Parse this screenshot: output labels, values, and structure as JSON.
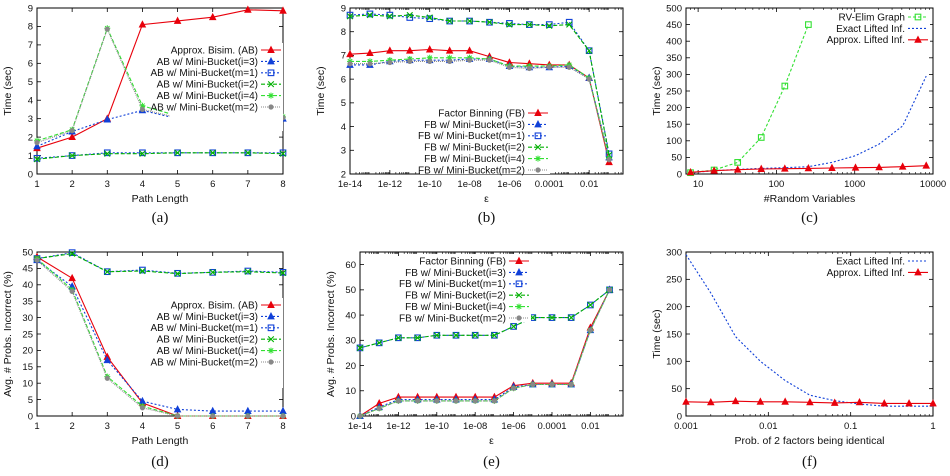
{
  "chart_data": [
    {
      "id": "a",
      "type": "line",
      "panel_label": "(a)",
      "xlabel": "Path Length",
      "ylabel": "Time (sec)",
      "xscale": "linear",
      "xlim": [
        1,
        8
      ],
      "ylim": [
        0,
        9
      ],
      "xticks": [
        1,
        2,
        3,
        4,
        5,
        6,
        7,
        8
      ],
      "xtick_labels": [
        "1",
        "2",
        "3",
        "4",
        "5",
        "6",
        "7",
        "8"
      ],
      "yticks": [
        0,
        1,
        2,
        3,
        4,
        5,
        6,
        7,
        8,
        9
      ],
      "ytick_labels": [
        "0",
        "1",
        "2",
        "3",
        "4",
        "5",
        "6",
        "7",
        "8",
        "9"
      ],
      "legend_position": "top-right",
      "x": [
        1,
        2,
        3,
        4,
        5,
        6,
        7,
        8
      ],
      "series": [
        {
          "name": "Approx. Bisim. (AB)",
          "style": "ab",
          "values": [
            1.4,
            2.0,
            3.0,
            8.1,
            8.3,
            8.5,
            8.9,
            8.85
          ]
        },
        {
          "name": "AB w/ Mini-Bucket(i=3)",
          "style": "i3",
          "values": [
            1.5,
            2.3,
            2.95,
            3.45,
            3.0,
            2.95,
            3.0,
            3.0
          ]
        },
        {
          "name": "AB w/ Mini-Bucket(m=1)",
          "style": "m1",
          "values": [
            0.85,
            1.0,
            1.15,
            1.15,
            1.15,
            1.15,
            1.15,
            1.15
          ]
        },
        {
          "name": "AB w/ Mini-Bucket(i=2)",
          "style": "i2",
          "values": [
            0.8,
            1.0,
            1.1,
            1.1,
            1.15,
            1.15,
            1.15,
            1.1
          ]
        },
        {
          "name": "AB w/ Mini-Bucket(i=4)",
          "style": "i4",
          "values": [
            1.8,
            2.4,
            7.9,
            3.7,
            3.15,
            3.05,
            3.1,
            3.1
          ]
        },
        {
          "name": "AB w/ Mini-Bucket(m=2)",
          "style": "m2",
          "values": [
            1.7,
            2.35,
            7.85,
            3.5,
            3.05,
            3.0,
            3.05,
            3.05
          ]
        }
      ]
    },
    {
      "id": "b",
      "type": "line",
      "panel_label": "(b)",
      "xlabel": "ε",
      "ylabel": "Time (sec)",
      "xscale": "log",
      "xlim": [
        1e-14,
        0.5
      ],
      "ylim": [
        2,
        9
      ],
      "xticks": [
        1e-14,
        1e-12,
        1e-10,
        1e-08,
        1e-06,
        0.0001,
        0.01
      ],
      "xtick_labels": [
        "1e-14",
        "1e-12",
        "1e-10",
        "1e-08",
        "1e-06",
        "0.0001",
        "0.01"
      ],
      "yticks": [
        2,
        3,
        4,
        5,
        6,
        7,
        8,
        9
      ],
      "ytick_labels": [
        "2",
        "3",
        "4",
        "5",
        "6",
        "7",
        "8",
        "9"
      ],
      "legend_position": "bottom-center",
      "x": [
        1e-14,
        1e-13,
        1e-12,
        1e-11,
        1e-10,
        1e-09,
        1e-08,
        1e-07,
        1e-06,
        1e-05,
        0.0001,
        0.001,
        0.01,
        0.1
      ],
      "series": [
        {
          "name": "Factor Binning (FB)",
          "style": "ab",
          "values": [
            7.05,
            7.1,
            7.2,
            7.2,
            7.25,
            7.2,
            7.2,
            6.95,
            6.7,
            6.65,
            6.6,
            6.6,
            6.05,
            2.5
          ]
        },
        {
          "name": "FB w/ Mini-Bucket(i=3)",
          "style": "i3",
          "values": [
            6.6,
            6.6,
            6.75,
            6.8,
            6.8,
            6.8,
            6.85,
            6.85,
            6.55,
            6.5,
            6.5,
            6.55,
            6.05,
            2.7
          ]
        },
        {
          "name": "FB w/ Mini-Bucket(m=1)",
          "style": "m1",
          "values": [
            8.7,
            8.75,
            8.7,
            8.6,
            8.55,
            8.45,
            8.45,
            8.4,
            8.35,
            8.3,
            8.3,
            8.4,
            7.2,
            2.85
          ]
        },
        {
          "name": "FB w/ Mini-Bucket(i=2)",
          "style": "i2",
          "values": [
            8.65,
            8.7,
            8.65,
            8.7,
            8.6,
            8.45,
            8.45,
            8.4,
            8.3,
            8.3,
            8.25,
            8.3,
            7.2,
            2.8
          ]
        },
        {
          "name": "FB w/ Mini-Bucket(i=4)",
          "style": "i4",
          "values": [
            6.75,
            6.75,
            6.8,
            6.85,
            6.9,
            6.9,
            6.9,
            6.85,
            6.55,
            6.55,
            6.55,
            6.6,
            6.05,
            2.65
          ]
        },
        {
          "name": "FB w/ Mini-Bucket(m=2)",
          "style": "m2",
          "values": [
            6.65,
            6.65,
            6.7,
            6.75,
            6.75,
            6.75,
            6.8,
            6.8,
            6.5,
            6.45,
            6.5,
            6.5,
            6.0,
            2.6
          ]
        }
      ]
    },
    {
      "id": "c",
      "type": "line",
      "panel_label": "(c)",
      "xlabel": "#Random Variables",
      "ylabel": "Time (sec)",
      "xscale": "log",
      "xlim": [
        7,
        10000
      ],
      "ylim": [
        0,
        500
      ],
      "xticks": [
        10,
        100,
        1000,
        10000
      ],
      "xtick_labels": [
        "10",
        "100",
        "1000",
        "10000"
      ],
      "yticks": [
        0,
        50,
        100,
        150,
        200,
        250,
        300,
        350,
        400,
        450,
        500
      ],
      "ytick_labels": [
        "0",
        "50",
        "100",
        "150",
        "200",
        "250",
        "300",
        "350",
        "400",
        "450",
        "500"
      ],
      "legend_position": "top-right",
      "series": [
        {
          "name": "RV-Elim Graph",
          "style": "rv",
          "x": [
            8,
            16,
            32,
            64,
            128,
            256
          ],
          "values": [
            4,
            12,
            35,
            110,
            265,
            450
          ]
        },
        {
          "name": "Exact Lifted Inf.",
          "style": "exact",
          "x": [
            8,
            16,
            32,
            64,
            128,
            256,
            512,
            1024,
            2048,
            4096,
            8192
          ],
          "values": [
            4,
            10,
            14,
            17,
            19,
            22,
            35,
            55,
            90,
            145,
            295
          ]
        },
        {
          "name": "Approx. Lifted Inf.",
          "style": "ab",
          "x": [
            8,
            16,
            32,
            64,
            128,
            256,
            512,
            1024,
            2048,
            4096,
            8192
          ],
          "values": [
            5,
            10,
            13,
            15,
            16,
            17,
            18,
            19,
            20,
            22,
            25
          ]
        }
      ]
    },
    {
      "id": "d",
      "type": "line",
      "panel_label": "(d)",
      "xlabel": "Path Length",
      "ylabel": "Avg. # Probs. Incorrect (%)",
      "xscale": "linear",
      "xlim": [
        1,
        8
      ],
      "ylim": [
        0,
        50
      ],
      "xticks": [
        1,
        2,
        3,
        4,
        5,
        6,
        7,
        8
      ],
      "xtick_labels": [
        "1",
        "2",
        "3",
        "4",
        "5",
        "6",
        "7",
        "8"
      ],
      "yticks": [
        0,
        5,
        10,
        15,
        20,
        25,
        30,
        35,
        40,
        45,
        50
      ],
      "ytick_labels": [
        "0",
        "5",
        "10",
        "15",
        "20",
        "25",
        "30",
        "35",
        "40",
        "45",
        "50"
      ],
      "legend_position": "center-right",
      "x": [
        1,
        2,
        3,
        4,
        5,
        6,
        7,
        8
      ],
      "series": [
        {
          "name": "Approx. Bisim. (AB)",
          "style": "ab",
          "values": [
            48.5,
            42,
            18,
            4,
            0,
            0,
            0,
            0
          ]
        },
        {
          "name": "AB w/ Mini-Bucket(i=3)",
          "style": "i3",
          "values": [
            47.5,
            39.5,
            17,
            4.5,
            2,
            1.5,
            1.5,
            1.5
          ]
        },
        {
          "name": "AB w/ Mini-Bucket(m=1)",
          "style": "m1",
          "values": [
            48,
            49.8,
            44,
            44.5,
            43.5,
            43.8,
            44.2,
            43.8
          ]
        },
        {
          "name": "AB w/ Mini-Bucket(i=2)",
          "style": "i2",
          "values": [
            48,
            49.5,
            44,
            44.2,
            43.4,
            43.8,
            44,
            43.6
          ]
        },
        {
          "name": "AB w/ Mini-Bucket(i=4)",
          "style": "i4",
          "values": [
            48,
            38.5,
            12,
            3,
            0,
            0,
            0,
            0
          ]
        },
        {
          "name": "AB w/ Mini-Bucket(m=2)",
          "style": "m2",
          "values": [
            47.5,
            38,
            11.5,
            2.5,
            0,
            0,
            0,
            0
          ]
        }
      ]
    },
    {
      "id": "e",
      "type": "line",
      "panel_label": "(e)",
      "xlabel": "ε",
      "ylabel": "Avg. # Probs. Incorrect (%)",
      "xscale": "log",
      "xlim": [
        1e-14,
        0.5
      ],
      "ylim": [
        0,
        65
      ],
      "xticks": [
        1e-14,
        1e-12,
        1e-10,
        1e-08,
        1e-06,
        0.0001,
        0.01
      ],
      "xtick_labels": [
        "1e-14",
        "1e-12",
        "1e-10",
        "1e-08",
        "1e-06",
        "0.0001",
        "0.01"
      ],
      "yticks": [
        0,
        10,
        20,
        30,
        40,
        50,
        60
      ],
      "ytick_labels": [
        "0",
        "10",
        "20",
        "30",
        "40",
        "50",
        "60"
      ],
      "legend_position": "top-left",
      "x": [
        1e-14,
        1e-13,
        1e-12,
        1e-11,
        1e-10,
        1e-09,
        1e-08,
        1e-07,
        1e-06,
        1e-05,
        0.0001,
        0.001,
        0.01,
        0.1
      ],
      "series": [
        {
          "name": "Factor Binning (FB)",
          "style": "ab",
          "values": [
            0,
            5,
            7.5,
            7.5,
            7.5,
            7.5,
            7.5,
            7.5,
            12,
            13,
            13,
            13,
            35,
            50
          ]
        },
        {
          "name": "FB w/ Mini-Bucket(i=3)",
          "style": "i3",
          "values": [
            0,
            3.5,
            6.5,
            6.5,
            6.5,
            6.5,
            6.5,
            6.5,
            11.5,
            12.5,
            12.5,
            12.5,
            34,
            50
          ]
        },
        {
          "name": "FB w/ Mini-Bucket(m=1)",
          "style": "m1",
          "values": [
            27,
            29,
            31,
            31,
            32,
            32,
            32,
            32,
            35.5,
            39,
            39,
            39,
            44,
            50
          ]
        },
        {
          "name": "FB w/ Mini-Bucket(i=2)",
          "style": "i2",
          "values": [
            27,
            29,
            31,
            31,
            32,
            32,
            32,
            32,
            35.5,
            39,
            39,
            39,
            44,
            50
          ]
        },
        {
          "name": "FB w/ Mini-Bucket(i=4)",
          "style": "i4",
          "values": [
            0,
            3,
            6,
            6,
            6,
            6,
            6,
            6,
            11,
            12.5,
            12.5,
            12.5,
            34,
            50
          ]
        },
        {
          "name": "FB w/ Mini-Bucket(m=2)",
          "style": "m2",
          "values": [
            0,
            3,
            6,
            6,
            6,
            6,
            6,
            6,
            11,
            12.5,
            12.5,
            12.5,
            34,
            50
          ]
        }
      ]
    },
    {
      "id": "f",
      "type": "line",
      "panel_label": "(f)",
      "xlabel": "Prob. of 2 factors being identical",
      "ylabel": "Time (sec)",
      "xscale": "log",
      "xlim": [
        0.001,
        1
      ],
      "ylim": [
        0,
        300
      ],
      "xticks": [
        0.001,
        0.01,
        0.1,
        1
      ],
      "xtick_labels": [
        "0.001",
        "0.01",
        "0.1",
        "1"
      ],
      "yticks": [
        0,
        50,
        100,
        150,
        200,
        250,
        300
      ],
      "ytick_labels": [
        "0",
        "50",
        "100",
        "150",
        "200",
        "250",
        "300"
      ],
      "legend_position": "top-right",
      "x": [
        0.001,
        0.002,
        0.004,
        0.008,
        0.016,
        0.032,
        0.064,
        0.128,
        0.256,
        0.512,
        1.0
      ],
      "series": [
        {
          "name": "Exact Lifted Inf.",
          "style": "exact",
          "values": [
            295,
            225,
            145,
            100,
            65,
            38,
            28,
            22,
            18,
            18,
            18
          ]
        },
        {
          "name": "Approx. Lifted Inf.",
          "style": "ab",
          "values": [
            26,
            25,
            27,
            26,
            26,
            25,
            24,
            25,
            23,
            23,
            23
          ]
        }
      ]
    }
  ],
  "styles": {
    "ab": {
      "color": "#e8000b",
      "marker": "triangle",
      "dash": ""
    },
    "i3": {
      "color": "#1040d8",
      "marker": "triangle",
      "dash": "2,2"
    },
    "m1": {
      "color": "#1040d8",
      "marker": "square",
      "dash": "2,2"
    },
    "i2": {
      "color": "#00b000",
      "marker": "x",
      "dash": "4,2"
    },
    "i4": {
      "color": "#33e033",
      "marker": "cross",
      "dash": "4,2"
    },
    "m2": {
      "color": "#888888",
      "marker": "circle",
      "dash": "1,1"
    },
    "rv": {
      "color": "#33e033",
      "marker": "square",
      "dash": "3,2"
    },
    "exact": {
      "color": "#1040d8",
      "marker": "none",
      "dash": "2,2"
    }
  }
}
